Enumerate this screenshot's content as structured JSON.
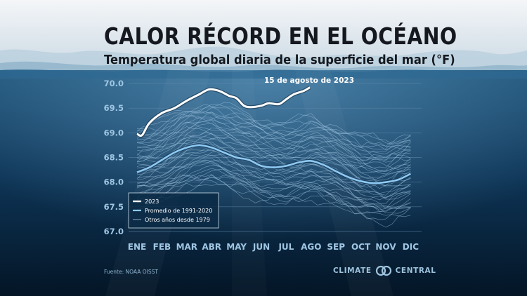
{
  "title": "CALOR RÉCORD EN EL OCÉANO",
  "subtitle": "Temperatura global diaria de la superficie del mar (°F)",
  "source": "Fuente: NOAA OISST",
  "brand": {
    "word1": "CLIMATE",
    "word2": "CENTRAL",
    "logo_icon": "two-interlocking-circles-icon"
  },
  "colors": {
    "record_line": "#ffffff",
    "average_line": "#8ec9f2",
    "other_years": "#9cc3e0",
    "axis_text": "#9fc6e3",
    "grid": "#5e88aa",
    "ocean_top": "#1e5378",
    "ocean_bottom": "#041526",
    "sky": "#dfe8ee"
  },
  "chart_data": {
    "type": "line",
    "title": "Temperatura global diaria de la superficie del mar (°F)",
    "xlabel": "",
    "ylabel": "",
    "x_categories": [
      "ENE",
      "FEB",
      "MAR",
      "ABR",
      "MAY",
      "JUN",
      "JUL",
      "AGO",
      "SEP",
      "OCT",
      "NOV",
      "DIC"
    ],
    "yticks": [
      "67.0",
      "67.5",
      "68.0",
      "68.5",
      "69.0",
      "69.5",
      "70.0"
    ],
    "ylim": [
      67.0,
      70.0
    ],
    "grid": true,
    "annotation": "15 de agosto de 2023",
    "legend": {
      "placement": "bottom-left",
      "entries": [
        "2023",
        "Promedio de 1991-2020",
        "Otros años desde 1979"
      ]
    },
    "series": [
      {
        "name": "2023",
        "x_month": [
          0,
          0.2,
          0.5,
          1.0,
          1.5,
          2.0,
          2.5,
          2.9,
          3.3,
          3.7,
          4.0,
          4.3,
          4.6,
          5.0,
          5.3,
          5.7,
          6.0,
          6.3,
          6.7,
          6.95
        ],
        "values": [
          68.98,
          68.95,
          69.2,
          69.4,
          69.5,
          69.65,
          69.78,
          69.88,
          69.85,
          69.75,
          69.7,
          69.55,
          69.52,
          69.55,
          69.6,
          69.58,
          69.68,
          69.78,
          69.85,
          69.92
        ]
      },
      {
        "name": "Promedio de 1991-2020",
        "x_month": [
          0,
          0.5,
          1.0,
          1.5,
          2.0,
          2.5,
          3.0,
          3.5,
          4.0,
          4.5,
          5.0,
          5.5,
          6.0,
          6.5,
          7.0,
          7.5,
          8.0,
          8.5,
          9.0,
          9.5,
          10.0,
          10.5,
          11.0
        ],
        "values": [
          68.2,
          68.3,
          68.45,
          68.6,
          68.7,
          68.75,
          68.7,
          68.6,
          68.5,
          68.45,
          68.33,
          68.3,
          68.33,
          68.4,
          68.43,
          68.35,
          68.22,
          68.1,
          68.02,
          67.98,
          68.0,
          68.05,
          68.17
        ]
      },
      {
        "name": "Otros años desde 1979",
        "count": 44,
        "x_month": [
          0,
          1,
          2,
          3,
          4,
          5,
          6,
          7,
          8,
          9,
          10,
          11
        ],
        "mean_profile": [
          68.3,
          68.45,
          68.7,
          68.8,
          68.65,
          68.45,
          68.4,
          68.5,
          68.35,
          68.12,
          68.02,
          68.2
        ],
        "spread": [
          -0.8,
          0.8
        ]
      }
    ]
  }
}
